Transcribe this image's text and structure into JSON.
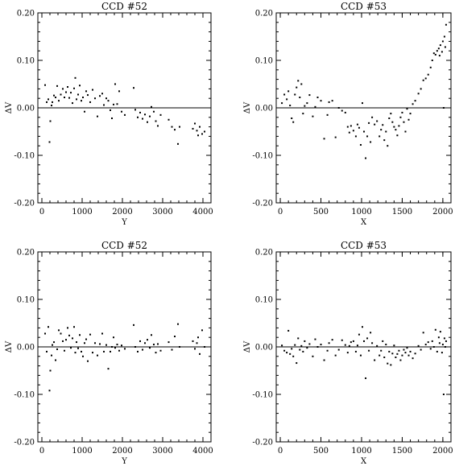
{
  "chart_data": [
    {
      "type": "scatter",
      "title": "CCD  #52",
      "xlabel": "Y",
      "ylabel": "ΔV",
      "xlim": [
        -100,
        4200
      ],
      "ylim": [
        -0.2,
        0.2
      ],
      "xticks": [
        0,
        1000,
        2000,
        3000,
        4000
      ],
      "yticks": [
        -0.2,
        -0.1,
        0.0,
        0.1,
        0.2
      ],
      "xtick_labels": [
        "0",
        "1000",
        "2000",
        "3000",
        "4000"
      ],
      "ytick_labels": [
        "-0.20",
        "-0.10",
        "0.00",
        "0.10",
        "0.20"
      ],
      "zero_line": true,
      "points": [
        [
          80,
          0.048
        ],
        [
          120,
          0.012
        ],
        [
          160,
          0.018
        ],
        [
          190,
          -0.072
        ],
        [
          210,
          -0.028
        ],
        [
          240,
          0.005
        ],
        [
          260,
          0.012
        ],
        [
          300,
          0.026
        ],
        [
          340,
          0.022
        ],
        [
          380,
          0.046
        ],
        [
          420,
          0.015
        ],
        [
          470,
          0.028
        ],
        [
          520,
          0.04
        ],
        [
          560,
          0.022
        ],
        [
          600,
          0.033
        ],
        [
          640,
          0.044
        ],
        [
          680,
          0.021
        ],
        [
          720,
          0.032
        ],
        [
          760,
          0.01
        ],
        [
          800,
          0.041
        ],
        [
          830,
          0.063
        ],
        [
          860,
          0.018
        ],
        [
          900,
          0.028
        ],
        [
          940,
          0.047
        ],
        [
          980,
          0.015
        ],
        [
          1020,
          0.022
        ],
        [
          1060,
          -0.008
        ],
        [
          1100,
          0.035
        ],
        [
          1140,
          0.027
        ],
        [
          1200,
          0.012
        ],
        [
          1260,
          0.038
        ],
        [
          1320,
          0.02
        ],
        [
          1380,
          -0.018
        ],
        [
          1440,
          0.025
        ],
        [
          1500,
          0.03
        ],
        [
          1540,
          0.006
        ],
        [
          1600,
          0.02
        ],
        [
          1650,
          0.015
        ],
        [
          1700,
          -0.005
        ],
        [
          1740,
          -0.022
        ],
        [
          1780,
          0.007
        ],
        [
          1820,
          0.05
        ],
        [
          1870,
          0.008
        ],
        [
          1920,
          0.035
        ],
        [
          1980,
          -0.008
        ],
        [
          2060,
          -0.015
        ],
        [
          2280,
          0.042
        ],
        [
          2320,
          -0.004
        ],
        [
          2380,
          -0.02
        ],
        [
          2440,
          -0.01
        ],
        [
          2500,
          -0.023
        ],
        [
          2560,
          -0.014
        ],
        [
          2620,
          -0.03
        ],
        [
          2680,
          -0.018
        ],
        [
          2720,
          0.002
        ],
        [
          2780,
          -0.008
        ],
        [
          2830,
          -0.028
        ],
        [
          2880,
          -0.038
        ],
        [
          2950,
          -0.015
        ],
        [
          3150,
          -0.025
        ],
        [
          3230,
          -0.04
        ],
        [
          3300,
          -0.046
        ],
        [
          3380,
          -0.076
        ],
        [
          3420,
          -0.04
        ],
        [
          3750,
          -0.044
        ],
        [
          3800,
          -0.033
        ],
        [
          3850,
          -0.048
        ],
        [
          3880,
          -0.058
        ],
        [
          3920,
          -0.04
        ],
        [
          3980,
          -0.055
        ],
        [
          4040,
          -0.05
        ]
      ]
    },
    {
      "type": "scatter",
      "title": "CCD  #53",
      "xlabel": "X",
      "ylabel": "ΔV",
      "xlim": [
        -50,
        2100
      ],
      "ylim": [
        -0.2,
        0.2
      ],
      "xticks": [
        0,
        500,
        1000,
        1500,
        2000
      ],
      "yticks": [
        -0.2,
        -0.1,
        0.0,
        0.1,
        0.2
      ],
      "xtick_labels": [
        "0",
        "500",
        "1000",
        "1500",
        "2000"
      ],
      "ytick_labels": [
        "-0.20",
        "-0.10",
        "0.00",
        "0.10",
        "0.20"
      ],
      "zero_line": true,
      "points": [
        [
          20,
          0.01
        ],
        [
          50,
          0.028
        ],
        [
          80,
          0.018
        ],
        [
          100,
          0.035
        ],
        [
          120,
          0.005
        ],
        [
          140,
          -0.022
        ],
        [
          160,
          -0.03
        ],
        [
          180,
          0.028
        ],
        [
          200,
          0.043
        ],
        [
          220,
          0.057
        ],
        [
          240,
          0.022
        ],
        [
          260,
          0.05
        ],
        [
          280,
          -0.012
        ],
        [
          300,
          0.004
        ],
        [
          330,
          0.01
        ],
        [
          360,
          0.027
        ],
        [
          400,
          -0.018
        ],
        [
          430,
          0.002
        ],
        [
          460,
          0.022
        ],
        [
          500,
          0.015
        ],
        [
          540,
          -0.065
        ],
        [
          580,
          -0.015
        ],
        [
          600,
          0.012
        ],
        [
          640,
          0.015
        ],
        [
          680,
          -0.062
        ],
        [
          720,
          0.0
        ],
        [
          760,
          -0.006
        ],
        [
          800,
          -0.01
        ],
        [
          830,
          -0.04
        ],
        [
          850,
          -0.052
        ],
        [
          870,
          -0.038
        ],
        [
          900,
          -0.048
        ],
        [
          930,
          -0.06
        ],
        [
          950,
          -0.035
        ],
        [
          970,
          -0.042
        ],
        [
          990,
          -0.078
        ],
        [
          1010,
          0.01
        ],
        [
          1030,
          -0.05
        ],
        [
          1050,
          -0.106
        ],
        [
          1070,
          -0.06
        ],
        [
          1090,
          -0.032
        ],
        [
          1110,
          -0.072
        ],
        [
          1130,
          -0.02
        ],
        [
          1160,
          -0.035
        ],
        [
          1190,
          -0.028
        ],
        [
          1220,
          -0.06
        ],
        [
          1240,
          -0.046
        ],
        [
          1260,
          -0.036
        ],
        [
          1280,
          -0.068
        ],
        [
          1300,
          -0.05
        ],
        [
          1320,
          -0.08
        ],
        [
          1340,
          -0.022
        ],
        [
          1360,
          -0.012
        ],
        [
          1380,
          -0.03
        ],
        [
          1400,
          -0.04
        ],
        [
          1420,
          -0.046
        ],
        [
          1440,
          -0.058
        ],
        [
          1460,
          -0.038
        ],
        [
          1480,
          -0.02
        ],
        [
          1500,
          -0.01
        ],
        [
          1520,
          -0.03
        ],
        [
          1540,
          -0.05
        ],
        [
          1560,
          -0.002
        ],
        [
          1580,
          -0.025
        ],
        [
          1600,
          -0.012
        ],
        [
          1630,
          0.008
        ],
        [
          1660,
          0.015
        ],
        [
          1700,
          0.03
        ],
        [
          1730,
          0.04
        ],
        [
          1760,
          0.058
        ],
        [
          1790,
          0.062
        ],
        [
          1820,
          0.07
        ],
        [
          1850,
          0.085
        ],
        [
          1870,
          0.1
        ],
        [
          1890,
          0.115
        ],
        [
          1910,
          0.112
        ],
        [
          1930,
          0.12
        ],
        [
          1950,
          0.125
        ],
        [
          1960,
          0.11
        ],
        [
          1970,
          0.132
        ],
        [
          1990,
          0.118
        ],
        [
          2000,
          0.14
        ],
        [
          2010,
          0.0
        ],
        [
          2020,
          0.15
        ],
        [
          2030,
          0.128
        ],
        [
          2040,
          0.175
        ]
      ]
    },
    {
      "type": "scatter",
      "title": "CCD  #52",
      "xlabel": "Y",
      "ylabel": "ΔV",
      "xlim": [
        -100,
        4200
      ],
      "ylim": [
        -0.2,
        0.2
      ],
      "xticks": [
        0,
        1000,
        2000,
        3000,
        4000
      ],
      "yticks": [
        -0.2,
        -0.1,
        0.0,
        0.1,
        0.2
      ],
      "xtick_labels": [
        "0",
        "1000",
        "2000",
        "3000",
        "4000"
      ],
      "ytick_labels": [
        "-0.20",
        "-0.10",
        "0.00",
        "0.10",
        "0.20"
      ],
      "zero_line": true,
      "points": [
        [
          80,
          0.028
        ],
        [
          120,
          -0.01
        ],
        [
          160,
          0.042
        ],
        [
          190,
          -0.092
        ],
        [
          210,
          -0.05
        ],
        [
          240,
          -0.018
        ],
        [
          260,
          0.004
        ],
        [
          300,
          0.01
        ],
        [
          340,
          -0.028
        ],
        [
          380,
          -0.005
        ],
        [
          420,
          0.035
        ],
        [
          470,
          0.028
        ],
        [
          520,
          0.012
        ],
        [
          560,
          -0.008
        ],
        [
          600,
          0.015
        ],
        [
          640,
          0.04
        ],
        [
          680,
          0.024
        ],
        [
          720,
          -0.002
        ],
        [
          760,
          0.018
        ],
        [
          800,
          0.042
        ],
        [
          830,
          -0.012
        ],
        [
          860,
          0.01
        ],
        [
          900,
          -0.003
        ],
        [
          940,
          0.025
        ],
        [
          980,
          -0.01
        ],
        [
          1020,
          -0.02
        ],
        [
          1060,
          0.008
        ],
        [
          1100,
          0.016
        ],
        [
          1140,
          -0.03
        ],
        [
          1200,
          0.026
        ],
        [
          1260,
          -0.012
        ],
        [
          1320,
          0.008
        ],
        [
          1380,
          -0.018
        ],
        [
          1440,
          0.006
        ],
        [
          1500,
          0.028
        ],
        [
          1540,
          -0.01
        ],
        [
          1600,
          0.004
        ],
        [
          1650,
          -0.046
        ],
        [
          1700,
          -0.01
        ],
        [
          1740,
          0.0
        ],
        [
          1780,
          0.02
        ],
        [
          1820,
          -0.002
        ],
        [
          1870,
          0.005
        ],
        [
          1920,
          -0.008
        ],
        [
          1980,
          0.003
        ],
        [
          2060,
          -0.004
        ],
        [
          2280,
          0.046
        ],
        [
          2320,
          0.0
        ],
        [
          2380,
          -0.01
        ],
        [
          2440,
          0.012
        ],
        [
          2500,
          -0.006
        ],
        [
          2560,
          0.008
        ],
        [
          2620,
          0.015
        ],
        [
          2680,
          -0.002
        ],
        [
          2720,
          0.025
        ],
        [
          2780,
          0.005
        ],
        [
          2830,
          -0.012
        ],
        [
          2880,
          0.006
        ],
        [
          2950,
          -0.008
        ],
        [
          3150,
          0.01
        ],
        [
          3230,
          -0.006
        ],
        [
          3300,
          0.022
        ],
        [
          3380,
          0.048
        ],
        [
          3420,
          0.0
        ],
        [
          3750,
          0.012
        ],
        [
          3800,
          -0.004
        ],
        [
          3850,
          0.008
        ],
        [
          3880,
          0.02
        ],
        [
          3920,
          -0.015
        ],
        [
          3980,
          0.035
        ],
        [
          4040,
          0.0
        ]
      ]
    },
    {
      "type": "scatter",
      "title": "CCD  #53",
      "xlabel": "X",
      "ylabel": "ΔV",
      "xlim": [
        -50,
        2100
      ],
      "ylim": [
        -0.2,
        0.2
      ],
      "xticks": [
        0,
        500,
        1000,
        1500,
        2000
      ],
      "yticks": [
        -0.2,
        -0.1,
        0.0,
        0.1,
        0.2
      ],
      "xtick_labels": [
        "0",
        "500",
        "1000",
        "1500",
        "2000"
      ],
      "ytick_labels": [
        "-0.20",
        "-0.10",
        "0.00",
        "0.10",
        "0.20"
      ],
      "zero_line": true,
      "points": [
        [
          20,
          0.003
        ],
        [
          50,
          -0.008
        ],
        [
          80,
          -0.012
        ],
        [
          100,
          0.034
        ],
        [
          120,
          -0.015
        ],
        [
          140,
          -0.004
        ],
        [
          160,
          -0.02
        ],
        [
          180,
          0.004
        ],
        [
          200,
          -0.034
        ],
        [
          220,
          0.018
        ],
        [
          240,
          -0.006
        ],
        [
          260,
          0.002
        ],
        [
          280,
          -0.01
        ],
        [
          300,
          0.012
        ],
        [
          330,
          -0.002
        ],
        [
          360,
          0.006
        ],
        [
          400,
          -0.02
        ],
        [
          430,
          0.016
        ],
        [
          460,
          0.0
        ],
        [
          500,
          0.005
        ],
        [
          540,
          -0.028
        ],
        [
          580,
          -0.008
        ],
        [
          600,
          0.008
        ],
        [
          640,
          0.015
        ],
        [
          680,
          -0.018
        ],
        [
          720,
          -0.006
        ],
        [
          760,
          0.014
        ],
        [
          800,
          0.004
        ],
        [
          830,
          -0.012
        ],
        [
          850,
          0.002
        ],
        [
          870,
          0.01
        ],
        [
          900,
          0.012
        ],
        [
          930,
          -0.01
        ],
        [
          950,
          0.003
        ],
        [
          970,
          0.026
        ],
        [
          990,
          -0.018
        ],
        [
          1010,
          0.042
        ],
        [
          1030,
          0.012
        ],
        [
          1050,
          -0.066
        ],
        [
          1070,
          0.018
        ],
        [
          1090,
          -0.008
        ],
        [
          1110,
          0.03
        ],
        [
          1130,
          0.008
        ],
        [
          1160,
          -0.028
        ],
        [
          1190,
          0.002
        ],
        [
          1220,
          -0.018
        ],
        [
          1240,
          -0.008
        ],
        [
          1260,
          0.012
        ],
        [
          1280,
          -0.022
        ],
        [
          1300,
          0.005
        ],
        [
          1320,
          -0.035
        ],
        [
          1340,
          -0.01
        ],
        [
          1360,
          -0.038
        ],
        [
          1380,
          -0.014
        ],
        [
          1400,
          0.003
        ],
        [
          1420,
          -0.022
        ],
        [
          1440,
          -0.015
        ],
        [
          1460,
          -0.008
        ],
        [
          1480,
          -0.028
        ],
        [
          1500,
          -0.018
        ],
        [
          1520,
          -0.006
        ],
        [
          1540,
          -0.012
        ],
        [
          1560,
          -0.002
        ],
        [
          1580,
          -0.018
        ],
        [
          1600,
          -0.01
        ],
        [
          1630,
          -0.024
        ],
        [
          1660,
          -0.014
        ],
        [
          1700,
          0.002
        ],
        [
          1730,
          -0.006
        ],
        [
          1760,
          0.03
        ],
        [
          1790,
          0.005
        ],
        [
          1820,
          0.01
        ],
        [
          1850,
          -0.004
        ],
        [
          1870,
          0.012
        ],
        [
          1890,
          0.0
        ],
        [
          1910,
          0.036
        ],
        [
          1930,
          -0.01
        ],
        [
          1950,
          0.02
        ],
        [
          1960,
          0.008
        ],
        [
          1970,
          0.032
        ],
        [
          1990,
          -0.012
        ],
        [
          2000,
          0.005
        ],
        [
          2010,
          -0.1
        ],
        [
          2020,
          0.018
        ],
        [
          2030,
          0.0
        ],
        [
          2040,
          0.012
        ]
      ]
    }
  ]
}
